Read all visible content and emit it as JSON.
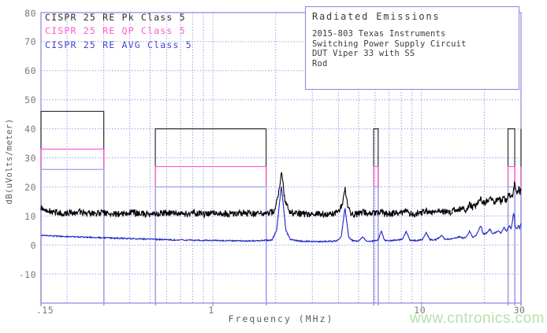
{
  "legend": {
    "entries": [
      {
        "label": "CISPR 25 RE Pk Class 5",
        "color": "#2f2f2f"
      },
      {
        "label": "CISPR 25 RE QP Class 5",
        "color": "#ff58cf"
      },
      {
        "label": "CISPR 25 RE AVG Class 5",
        "color": "#4444d0"
      }
    ]
  },
  "info_box": {
    "title": "Radiated Emissions",
    "lines": [
      "2015-803 Texas Instruments",
      "Switching Power Supply Circuit",
      "DUT Viper 33 with SS",
      "Rod"
    ]
  },
  "watermark": {
    "text": "www.cntronics.com",
    "color": "#b5e3aa"
  },
  "chart_data": {
    "type": "line",
    "title": "Radiated Emissions",
    "xlabel": "Frequency (MHz)",
    "ylabel": "dB(uVolts/meter)",
    "x_axis": {
      "scale": "log",
      "min": 0.15,
      "max": 30,
      "ticks": [
        {
          "value": 0.15,
          "label": ".15"
        },
        {
          "value": 1,
          "label": "1"
        },
        {
          "value": 10,
          "label": "10"
        },
        {
          "value": 30,
          "label": "30"
        }
      ],
      "minor_gridlines": [
        0.2,
        0.3,
        0.4,
        0.5,
        0.6,
        0.7,
        0.8,
        0.9,
        1,
        2,
        3,
        4,
        5,
        6,
        7,
        8,
        9,
        10,
        20
      ]
    },
    "y_axis": {
      "min": -20,
      "max": 80,
      "ticks": [
        {
          "value": 80,
          "label": "80"
        },
        {
          "value": 70,
          "label": "70"
        },
        {
          "value": 60,
          "label": "60"
        },
        {
          "value": 50,
          "label": "50"
        },
        {
          "value": 40,
          "label": "40"
        },
        {
          "value": 30,
          "label": "30"
        },
        {
          "value": 20,
          "label": "20"
        },
        {
          "value": 10,
          "label": "10"
        },
        {
          "value": 0,
          "label": "0"
        },
        {
          "value": -10,
          "label": "-10"
        }
      ]
    },
    "grid_color": "#9595f0",
    "border_color": "#8787e0",
    "limit_colors": {
      "pk": "#2e2e2e",
      "qp": "#ff55cc",
      "avg": "#9aa4ec"
    },
    "limit_bands": [
      {
        "range_mhz": [
          0.15,
          0.3
        ],
        "pk_db": 46,
        "qp_db": 33,
        "avg_db": 26
      },
      {
        "range_mhz": [
          0.53,
          1.8
        ],
        "pk_db": 40,
        "qp_db": 27,
        "avg_db": 20
      },
      {
        "range_mhz": [
          5.9,
          6.2
        ],
        "pk_db": 40,
        "qp_db": 27,
        "avg_db": 20
      },
      {
        "range_mhz": [
          26.0,
          28.0
        ],
        "pk_db": 40,
        "qp_db": 27,
        "avg_db": 20
      },
      {
        "range_mhz": [
          30.0,
          30.0
        ],
        "pk_db": 40,
        "qp_db": 27,
        "avg_db": 20
      }
    ],
    "series": [
      {
        "name": "pk_trace",
        "detector": "Pk",
        "color": "#000000",
        "noise_db": 1.15,
        "points": [
          [
            0.15,
            12.6
          ],
          [
            0.17,
            11.3
          ],
          [
            0.2,
            11.0
          ],
          [
            0.23,
            11.5
          ],
          [
            0.26,
            10.8
          ],
          [
            0.3,
            11.0
          ],
          [
            0.35,
            10.6
          ],
          [
            0.4,
            11.1
          ],
          [
            0.5,
            10.6
          ],
          [
            0.6,
            11.0
          ],
          [
            0.7,
            10.7
          ],
          [
            0.8,
            11.1
          ],
          [
            0.9,
            10.6
          ],
          [
            1.0,
            10.9
          ],
          [
            1.2,
            10.7
          ],
          [
            1.4,
            11.1
          ],
          [
            1.6,
            10.8
          ],
          [
            1.8,
            10.9
          ],
          [
            1.95,
            11.4
          ],
          [
            2.05,
            16.0
          ],
          [
            2.13,
            25.0
          ],
          [
            2.21,
            16.0
          ],
          [
            2.32,
            11.4
          ],
          [
            2.5,
            10.8
          ],
          [
            2.8,
            10.6
          ],
          [
            3.2,
            10.8
          ],
          [
            3.6,
            10.6
          ],
          [
            4.0,
            11.4
          ],
          [
            4.18,
            14.5
          ],
          [
            4.3,
            20.0
          ],
          [
            4.43,
            14.0
          ],
          [
            4.58,
            11.0
          ],
          [
            4.8,
            10.6
          ],
          [
            5.1,
            10.8
          ],
          [
            5.25,
            11.5
          ],
          [
            5.5,
            10.6
          ],
          [
            5.9,
            10.8
          ],
          [
            6.2,
            10.7
          ],
          [
            6.4,
            12.3
          ],
          [
            6.6,
            10.8
          ],
          [
            7.0,
            10.7
          ],
          [
            7.4,
            11.0
          ],
          [
            8.0,
            10.8
          ],
          [
            8.4,
            12.1
          ],
          [
            8.8,
            10.8
          ],
          [
            9.4,
            10.8
          ],
          [
            10.0,
            11.0
          ],
          [
            10.5,
            11.9
          ],
          [
            11.0,
            11.0
          ],
          [
            11.8,
            11.2
          ],
          [
            12.6,
            11.9
          ],
          [
            13.2,
            11.2
          ],
          [
            14.0,
            11.6
          ],
          [
            15.0,
            12.3
          ],
          [
            15.8,
            12.8
          ],
          [
            16.4,
            12.2
          ],
          [
            17.0,
            14.0
          ],
          [
            17.6,
            13.0
          ],
          [
            18.3,
            13.7
          ],
          [
            19.2,
            16.8
          ],
          [
            19.8,
            14.2
          ],
          [
            20.5,
            14.7
          ],
          [
            21.3,
            16.2
          ],
          [
            21.9,
            14.8
          ],
          [
            22.6,
            15.2
          ],
          [
            23.4,
            16.4
          ],
          [
            24.0,
            15.0
          ],
          [
            24.8,
            16.2
          ],
          [
            25.5,
            15.4
          ],
          [
            26.3,
            17.6
          ],
          [
            26.9,
            16.2
          ],
          [
            27.4,
            17.3
          ],
          [
            28.0,
            21.8
          ],
          [
            28.5,
            17.4
          ],
          [
            28.9,
            17.9
          ],
          [
            29.3,
            19.4
          ],
          [
            29.6,
            17.9
          ],
          [
            30.0,
            18.8
          ]
        ]
      },
      {
        "name": "avg_trace",
        "detector": "AVG",
        "color": "#1c23c8",
        "noise_db": 0.22,
        "points": [
          [
            0.15,
            3.3
          ],
          [
            0.2,
            2.9
          ],
          [
            0.3,
            2.5
          ],
          [
            0.4,
            2.2
          ],
          [
            0.55,
            1.9
          ],
          [
            0.7,
            1.7
          ],
          [
            0.9,
            1.6
          ],
          [
            1.1,
            1.5
          ],
          [
            1.4,
            1.4
          ],
          [
            1.7,
            1.5
          ],
          [
            1.92,
            1.7
          ],
          [
            2.02,
            5.0
          ],
          [
            2.13,
            20.3
          ],
          [
            2.24,
            5.0
          ],
          [
            2.35,
            1.9
          ],
          [
            2.55,
            1.4
          ],
          [
            2.8,
            1.3
          ],
          [
            3.1,
            1.2
          ],
          [
            3.5,
            1.2
          ],
          [
            3.9,
            1.4
          ],
          [
            4.12,
            2.5
          ],
          [
            4.3,
            13.0
          ],
          [
            4.48,
            2.5
          ],
          [
            4.7,
            1.4
          ],
          [
            5.0,
            1.4
          ],
          [
            5.22,
            2.8
          ],
          [
            5.45,
            1.4
          ],
          [
            5.8,
            1.3
          ],
          [
            6.2,
            1.7
          ],
          [
            6.42,
            4.8
          ],
          [
            6.65,
            1.6
          ],
          [
            7.0,
            1.4
          ],
          [
            7.5,
            1.7
          ],
          [
            8.1,
            1.9
          ],
          [
            8.45,
            4.6
          ],
          [
            8.8,
            1.7
          ],
          [
            9.4,
            1.5
          ],
          [
            10.1,
            1.9
          ],
          [
            10.55,
            4.2
          ],
          [
            11.0,
            1.8
          ],
          [
            11.7,
            1.8
          ],
          [
            12.5,
            3.2
          ],
          [
            13.0,
            1.9
          ],
          [
            13.7,
            2.0
          ],
          [
            14.5,
            2.3
          ],
          [
            15.2,
            2.9
          ],
          [
            15.8,
            2.3
          ],
          [
            16.4,
            2.7
          ],
          [
            17.0,
            4.7
          ],
          [
            17.6,
            2.7
          ],
          [
            18.3,
            3.3
          ],
          [
            19.2,
            6.7
          ],
          [
            19.8,
            3.7
          ],
          [
            20.5,
            4.1
          ],
          [
            21.3,
            5.5
          ],
          [
            21.9,
            3.9
          ],
          [
            22.7,
            4.3
          ],
          [
            23.4,
            4.9
          ],
          [
            24.1,
            4.1
          ],
          [
            24.9,
            6.2
          ],
          [
            25.5,
            4.7
          ],
          [
            26.4,
            6.7
          ],
          [
            26.9,
            5.3
          ],
          [
            27.7,
            11.2
          ],
          [
            28.2,
            6.2
          ],
          [
            28.7,
            5.3
          ],
          [
            29.2,
            6.9
          ],
          [
            29.5,
            5.6
          ],
          [
            30.0,
            7.3
          ]
        ]
      }
    ]
  }
}
